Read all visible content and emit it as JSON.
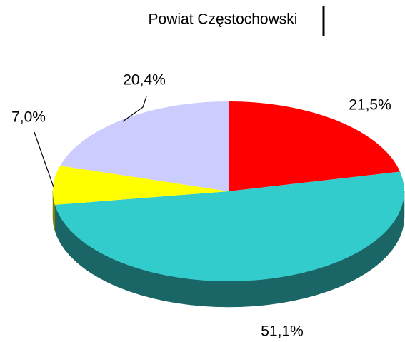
{
  "chart_data": {
    "type": "pie3d",
    "title": "Powiat Częstochowski",
    "values": [
      21.5,
      51.1,
      7.0,
      20.4
    ],
    "value_labels": [
      "21,5%",
      "51,1%",
      "7,0%",
      "20,4%"
    ],
    "colors": [
      "#ff0000",
      "#33cccc",
      "#ffff00",
      "#ccccff"
    ]
  }
}
